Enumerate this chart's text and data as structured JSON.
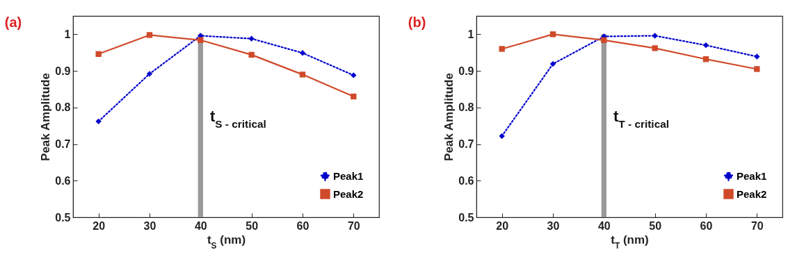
{
  "chart_data": [
    {
      "type": "line",
      "title": "(a)",
      "xlabel": "t$_{S}$ (nm)",
      "ylabel": "Peak Amplitude",
      "x": [
        20,
        30,
        40,
        50,
        60,
        70
      ],
      "xlim": [
        15,
        75
      ],
      "xticks": [
        20,
        30,
        40,
        50,
        60,
        70
      ],
      "ylim": [
        0.5,
        1.05
      ],
      "yticks": [
        0.5,
        0.6,
        0.7,
        0.8,
        0.9,
        1
      ],
      "grid": false,
      "legend": "bottom right",
      "series": [
        {
          "name": "Peak1",
          "color": "#0000cc",
          "marker": "diamond",
          "line_style": "dotted",
          "values": [
            0.762,
            0.892,
            0.996,
            0.988,
            0.949,
            0.888
          ]
        },
        {
          "name": "Peak2",
          "color": "#d04a2a",
          "marker": "square",
          "line_style": "solid",
          "values": [
            0.946,
            0.998,
            0.984,
            0.944,
            0.89,
            0.83
          ]
        }
      ],
      "bands": [
        {
          "axis": "x",
          "from": 39.5,
          "to": 40.5,
          "label": "t$_{S - critical}$",
          "color": "#999999"
        }
      ]
    },
    {
      "type": "line",
      "title": "(b)",
      "xlabel": "t$_{T}$ (nm)",
      "ylabel": "Peak Amplitude",
      "x": [
        20,
        30,
        40,
        50,
        60,
        70
      ],
      "xlim": [
        15,
        75
      ],
      "xticks": [
        20,
        30,
        40,
        50,
        60,
        70
      ],
      "ylim": [
        0.5,
        1.05
      ],
      "yticks": [
        0.5,
        0.6,
        0.7,
        0.8,
        0.9,
        1
      ],
      "grid": false,
      "legend": "bottom right",
      "series": [
        {
          "name": "Peak1",
          "color": "#0000cc",
          "marker": "diamond",
          "line_style": "dotted",
          "values": [
            0.722,
            0.919,
            0.994,
            0.996,
            0.97,
            0.939
          ]
        },
        {
          "name": "Peak2",
          "color": "#d04a2a",
          "marker": "square",
          "line_style": "solid",
          "values": [
            0.96,
            1.0,
            0.984,
            0.962,
            0.932,
            0.905
          ]
        }
      ],
      "bands": [
        {
          "axis": "x",
          "from": 39.5,
          "to": 40.5,
          "label": "t$_{T - critical}$",
          "color": "#999999"
        }
      ]
    }
  ]
}
